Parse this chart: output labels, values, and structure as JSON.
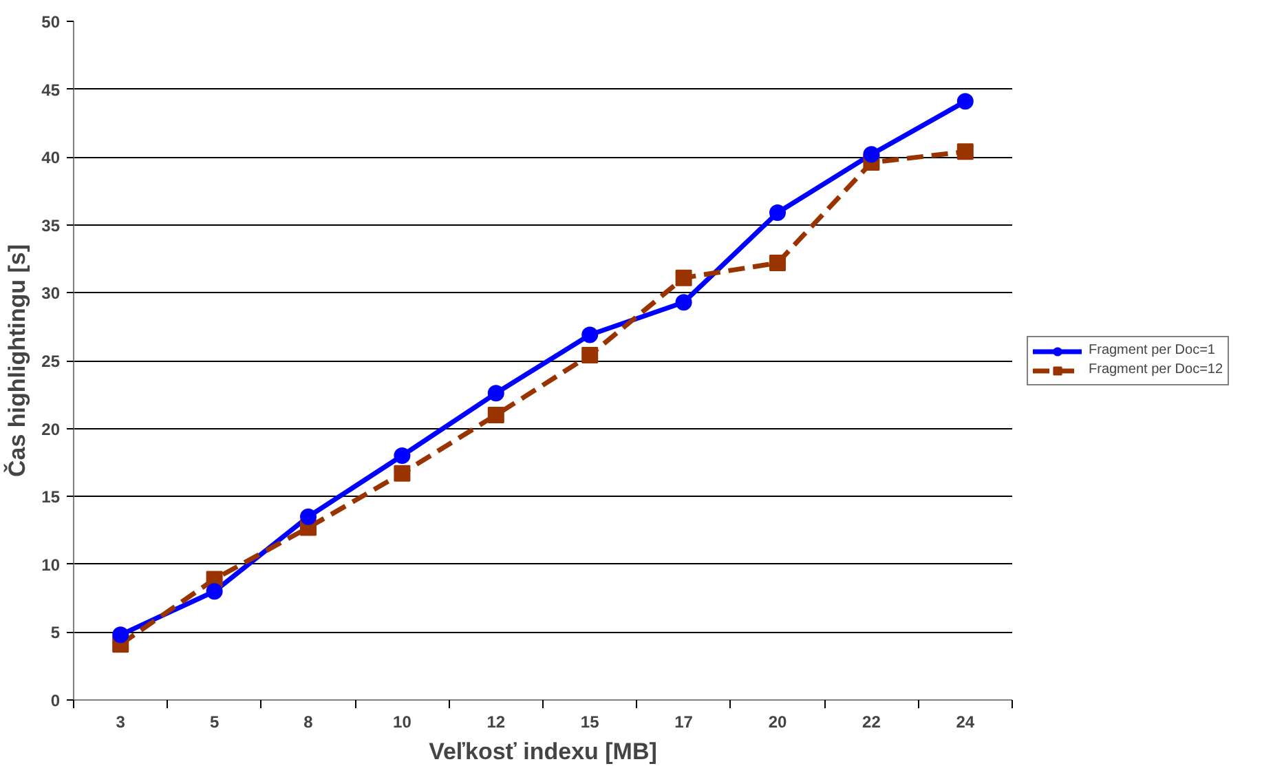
{
  "chart_data": {
    "type": "line",
    "xlabel": "Veľkosť indexu [MB]",
    "ylabel": "Čas highlightingu [s]",
    "categories": [
      "3",
      "5",
      "8",
      "10",
      "12",
      "15",
      "17",
      "20",
      "22",
      "24"
    ],
    "series": [
      {
        "name": "Fragment per Doc=1",
        "color": "#0000ff",
        "marker": "circle",
        "line_style": "solid",
        "values": [
          4.8,
          8.0,
          13.5,
          18.0,
          22.6,
          26.9,
          29.3,
          35.9,
          40.2,
          44.1
        ]
      },
      {
        "name": "Fragment per Doc=12",
        "color": "#993300",
        "marker": "square",
        "line_style": "dashed",
        "values": [
          4.1,
          8.9,
          12.7,
          16.7,
          21.0,
          25.4,
          31.1,
          32.2,
          39.6,
          40.4
        ]
      }
    ],
    "ylim": [
      0,
      50
    ],
    "yticks": [
      0,
      5,
      10,
      15,
      20,
      25,
      30,
      35,
      40,
      45,
      50
    ],
    "grid": "y",
    "legend": "right"
  }
}
